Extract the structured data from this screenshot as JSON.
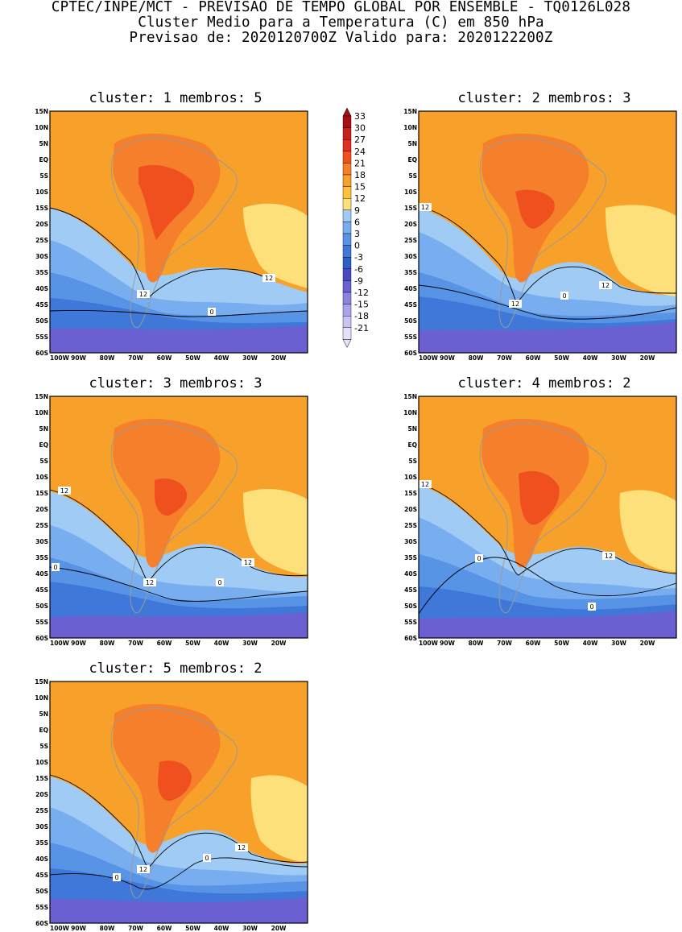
{
  "header": {
    "line1": "CPTEC/INPE/MCT - PREVISAO DE TEMPO GLOBAL POR ENSEMBLE - TQ0126L028",
    "line2": "Cluster Medio para a Temperatura (C) em 850 hPa",
    "line3": "Previsao de: 2020120700Z   Valido para: 2020122200Z"
  },
  "lat_labels": [
    "15N",
    "10N",
    "5N",
    "EQ",
    "5S",
    "10S",
    "15S",
    "20S",
    "25S",
    "30S",
    "35S",
    "40S",
    "45S",
    "50S",
    "55S",
    "60S"
  ],
  "lon_labels": [
    "100W",
    "90W",
    "80W",
    "70W",
    "60W",
    "50W",
    "40W",
    "30W",
    "20W"
  ],
  "legend": {
    "labels": [
      "33",
      "30",
      "27",
      "24",
      "21",
      "18",
      "15",
      "12",
      "9",
      "6",
      "3",
      "0",
      "-3",
      "-6",
      "-9",
      "-12",
      "-15",
      "-18",
      "-21"
    ],
    "colors": [
      "#a50f15",
      "#c8201c",
      "#e03020",
      "#f0501e",
      "#f57f2a",
      "#f7a02a",
      "#fbc23a",
      "#fde07a",
      "#a0cbf4",
      "#78aef0",
      "#5894e6",
      "#3f78d8",
      "#2d5fc4",
      "#4a4ac0",
      "#6a60d2",
      "#8c84e0",
      "#aaa4ec",
      "#c8c4f4",
      "#e4e2fa"
    ]
  },
  "panels": [
    {
      "title": "cluster: 1   membros: 5",
      "labels": {
        "a": "12",
        "b": "12",
        "c": "0"
      }
    },
    {
      "title": "cluster: 2   membros: 3",
      "labels": {
        "a": "12",
        "b": "12",
        "c": "12",
        "d": "0"
      }
    },
    {
      "title": "cluster: 3   membros: 3",
      "labels": {
        "a": "12",
        "b": "12",
        "c": "12",
        "d": "0",
        "e": "0"
      }
    },
    {
      "title": "cluster: 4   membros: 2",
      "labels": {
        "a": "12",
        "b": "12",
        "c": "0",
        "d": "0"
      }
    },
    {
      "title": "cluster: 5   membros: 2",
      "labels": {
        "a": "12",
        "b": "12",
        "c": "0",
        "d": "0"
      }
    }
  ]
}
